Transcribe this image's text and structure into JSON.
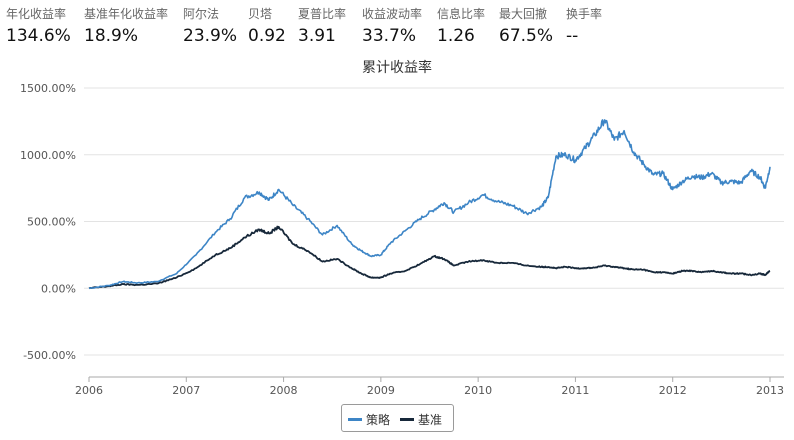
{
  "stats": [
    {
      "label": "年化收益率",
      "value": "134.6%"
    },
    {
      "label": "基准年化收益率",
      "value": "18.9%"
    },
    {
      "label": "阿尔法",
      "value": "23.9%"
    },
    {
      "label": "贝塔",
      "value": "0.92"
    },
    {
      "label": "夏普比率",
      "value": "3.91"
    },
    {
      "label": "收益波动率",
      "value": "33.7%"
    },
    {
      "label": "信息比率",
      "value": "1.26"
    },
    {
      "label": "最大回撤",
      "value": "67.5%"
    },
    {
      "label": "换手率",
      "value": "--"
    }
  ],
  "chart_data": {
    "type": "line",
    "title": "累计收益率",
    "xlabel": "",
    "ylabel": "",
    "x_ticks": [
      "2006",
      "2007",
      "2008",
      "2009",
      "2010",
      "2011",
      "2012",
      "2013"
    ],
    "y_ticks": [
      "1500.00%",
      "1000.00%",
      "500.00%",
      "0.00%",
      "-500.00%"
    ],
    "ylim": [
      -600,
      1500
    ],
    "xlim": [
      2006.0,
      2013.0
    ],
    "grid": "horizontal",
    "legend_position": "bottom-center",
    "series": [
      {
        "name": "策略",
        "color": "#3d85c6",
        "x": [
          2006.0,
          2006.2,
          2006.35,
          2006.5,
          2006.7,
          2006.9,
          2007.1,
          2007.3,
          2007.45,
          2007.6,
          2007.75,
          2007.85,
          2007.95,
          2008.1,
          2008.25,
          2008.4,
          2008.55,
          2008.7,
          2008.8,
          2008.9,
          2009.0,
          2009.1,
          2009.25,
          2009.4,
          2009.55,
          2009.65,
          2009.75,
          2009.9,
          2010.05,
          2010.2,
          2010.35,
          2010.5,
          2010.65,
          2010.72,
          2010.8,
          2010.9,
          2011.0,
          2011.1,
          2011.2,
          2011.3,
          2011.4,
          2011.5,
          2011.6,
          2011.7,
          2011.8,
          2011.9,
          2012.0,
          2012.1,
          2012.2,
          2012.3,
          2012.4,
          2012.5,
          2012.6,
          2012.7,
          2012.8,
          2012.9,
          2012.95,
          2013.0
        ],
        "values": [
          0,
          20,
          50,
          40,
          50,
          110,
          250,
          420,
          520,
          680,
          720,
          660,
          740,
          620,
          520,
          400,
          470,
          330,
          280,
          240,
          250,
          340,
          430,
          520,
          590,
          640,
          570,
          640,
          700,
          650,
          620,
          560,
          610,
          680,
          990,
          1000,
          960,
          1050,
          1150,
          1260,
          1110,
          1180,
          1020,
          930,
          850,
          860,
          740,
          800,
          840,
          830,
          860,
          790,
          800,
          790,
          880,
          830,
          750,
          910
        ]
      },
      {
        "name": "基准",
        "color": "#17283a",
        "x": [
          2006.0,
          2006.2,
          2006.35,
          2006.5,
          2006.7,
          2006.9,
          2007.1,
          2007.3,
          2007.45,
          2007.6,
          2007.75,
          2007.85,
          2007.95,
          2008.1,
          2008.25,
          2008.4,
          2008.55,
          2008.7,
          2008.8,
          2008.9,
          2009.0,
          2009.1,
          2009.25,
          2009.4,
          2009.55,
          2009.65,
          2009.75,
          2009.9,
          2010.05,
          2010.2,
          2010.35,
          2010.5,
          2010.65,
          2010.72,
          2010.8,
          2010.9,
          2011.0,
          2011.1,
          2011.2,
          2011.3,
          2011.4,
          2011.5,
          2011.6,
          2011.7,
          2011.8,
          2011.9,
          2012.0,
          2012.1,
          2012.2,
          2012.3,
          2012.4,
          2012.5,
          2012.6,
          2012.7,
          2012.8,
          2012.9,
          2012.95,
          2013.0
        ],
        "values": [
          0,
          15,
          30,
          25,
          35,
          80,
          150,
          250,
          300,
          380,
          440,
          410,
          460,
          330,
          280,
          200,
          220,
          150,
          110,
          80,
          80,
          110,
          130,
          180,
          240,
          220,
          170,
          200,
          210,
          190,
          190,
          170,
          160,
          160,
          150,
          160,
          150,
          150,
          155,
          170,
          160,
          150,
          140,
          140,
          120,
          120,
          110,
          130,
          130,
          120,
          130,
          120,
          110,
          110,
          100,
          110,
          100,
          130
        ]
      }
    ]
  }
}
